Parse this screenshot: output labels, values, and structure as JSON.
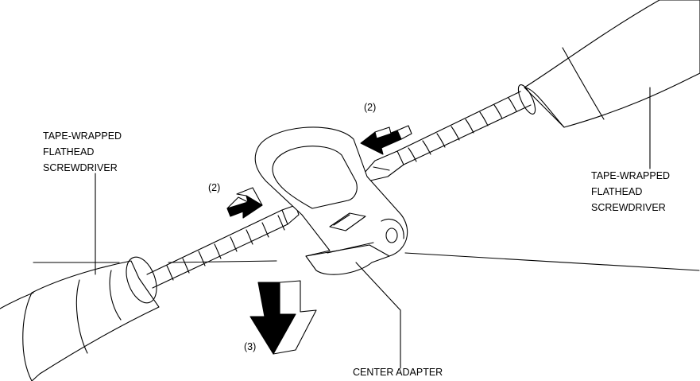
{
  "labels": {
    "left_screwdriver": [
      "TAPE-WRAPPED",
      "FLATHEAD",
      "SCREWDRIVER"
    ],
    "right_screwdriver": [
      "TAPE-WRAPPED",
      "FLATHEAD",
      "SCREWDRIVER"
    ],
    "step_top": "(2)",
    "step_left": "(2)",
    "step_bottom": "(3)",
    "part": "CENTER ADAPTER"
  },
  "colors": {
    "ink": "#000000",
    "paper": "#ffffff"
  }
}
